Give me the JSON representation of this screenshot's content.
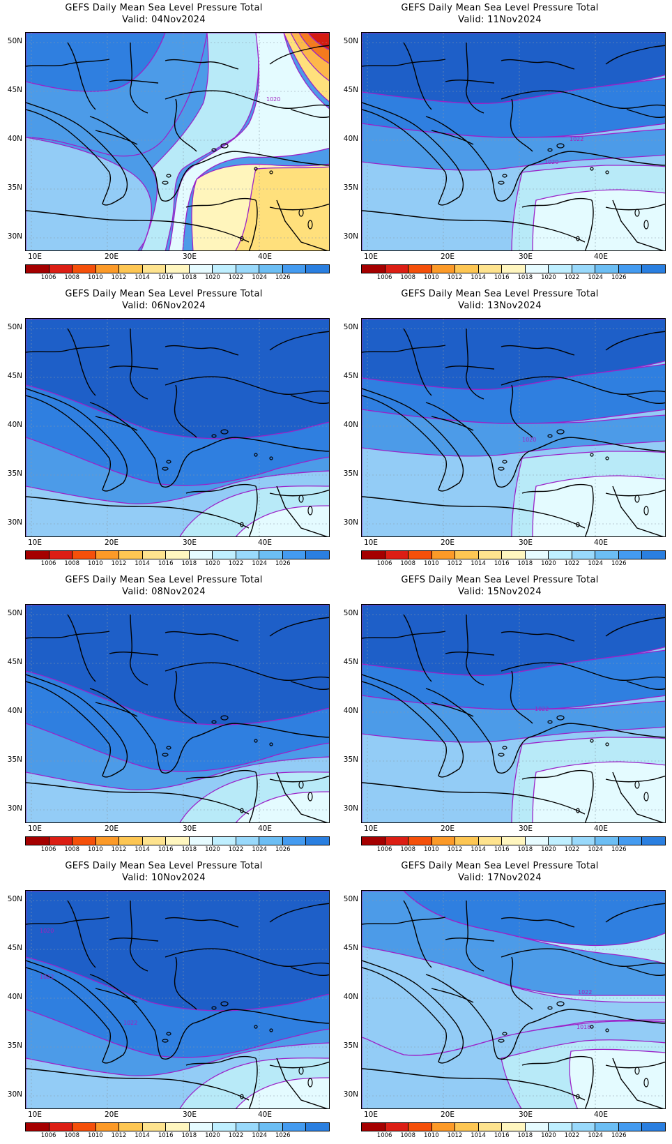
{
  "title_line": "GEFS Daily Mean Sea Level Pressure Total",
  "valid_prefix": "Valid: ",
  "panels": [
    {
      "valid": "04Nov2024",
      "contour_labels": [
        "1020"
      ],
      "theme": "high-north-low-east"
    },
    {
      "valid": "11Nov2024",
      "contour_labels": [
        "1022",
        "1020"
      ],
      "theme": "moderate"
    },
    {
      "valid": "06Nov2024",
      "contour_labels": [],
      "theme": "strong-high"
    },
    {
      "valid": "13Nov2024",
      "contour_labels": [
        "1020"
      ],
      "theme": "moderate"
    },
    {
      "valid": "08Nov2024",
      "contour_labels": [],
      "theme": "strong-high"
    },
    {
      "valid": "15Nov2024",
      "contour_labels": [
        "1022"
      ],
      "theme": "moderate"
    },
    {
      "valid": "10Nov2024",
      "contour_labels": [
        "1020",
        "1022",
        "1022"
      ],
      "theme": "strong-high"
    },
    {
      "valid": "17Nov2024",
      "contour_labels": [
        "1022",
        "1018"
      ],
      "theme": "weak"
    }
  ],
  "lat_labels": [
    "50N",
    "45N",
    "40N",
    "35N",
    "30N"
  ],
  "lon_labels": [
    "10E",
    "20E",
    "30E",
    "40E"
  ],
  "colorbar": {
    "labels": [
      "1006",
      "1008",
      "1010",
      "1012",
      "1014",
      "1016",
      "1018",
      "1020",
      "1022",
      "1024",
      "1026"
    ],
    "colors": [
      "#a50000",
      "#dc1e14",
      "#f5500a",
      "#fc9a28",
      "#fdc653",
      "#fee38e",
      "#fff6bf",
      "#e6fbff",
      "#bfefff",
      "#99d9fb",
      "#6cbef4",
      "#449bf0",
      "#2a7fe0"
    ]
  },
  "fill_colors": {
    "h1026": "#1e5fc8",
    "h1024": "#2f7fe0",
    "h1022": "#4c9be8",
    "h1020": "#93ccf6",
    "h1018": "#b8eaf8",
    "h1016": "#e4fbff",
    "h1014": "#fff5bc",
    "h1012": "#ffe07c",
    "h1010": "#fdb84a",
    "h1008": "#f47a1e",
    "h1006": "#d41c10"
  }
}
